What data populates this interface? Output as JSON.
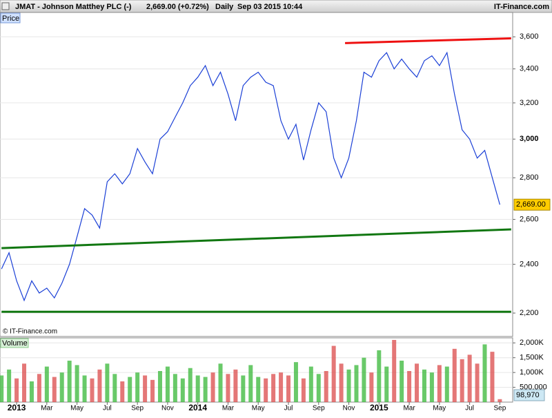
{
  "header": {
    "title": "JMAT - Johnson Matthey PLC (-)",
    "quote": "2,669.00 (+0.72%)",
    "interval": "Daily",
    "timestamp": "Sep 03 2015 10:44",
    "source": "IT-Finance.com",
    "watermark": "© IT-Finance.com"
  },
  "chart_data": [
    {
      "type": "line",
      "log_scale": true,
      "grid": true,
      "xlim": [
        -0.2,
        67.7
      ],
      "ylim": [
        2110,
        3760
      ],
      "yticks": [
        {
          "value": 2200,
          "label": "2,200"
        },
        {
          "value": 2400,
          "label": "2,400"
        },
        {
          "value": 2600,
          "label": "2,600"
        },
        {
          "value": 2800,
          "label": "2,800"
        },
        {
          "value": 3000,
          "label": "3,000"
        },
        {
          "value": 3200,
          "label": "3,200"
        },
        {
          "value": 3400,
          "label": "3,400"
        },
        {
          "value": 3600,
          "label": "3,600"
        }
      ],
      "series": [
        {
          "name": "Price",
          "color": "#1a3fd6",
          "values": [
            2380,
            2450,
            2330,
            2250,
            2330,
            2280,
            2300,
            2260,
            2320,
            2400,
            2520,
            2650,
            2620,
            2560,
            2780,
            2820,
            2770,
            2820,
            2950,
            2880,
            2820,
            3000,
            3040,
            3120,
            3200,
            3300,
            3350,
            3420,
            3300,
            3380,
            3250,
            3100,
            3300,
            3350,
            3380,
            3320,
            3300,
            3100,
            3000,
            3080,
            2890,
            3050,
            3200,
            3150,
            2900,
            2800,
            2900,
            3100,
            3380,
            3350,
            3450,
            3500,
            3400,
            3460,
            3400,
            3350,
            3450,
            3480,
            3420,
            3500,
            3250,
            3050,
            3000,
            2900,
            2940,
            2800,
            2669
          ],
          "value_labels": [
            null,
            null,
            null,
            null,
            null,
            null,
            null,
            null,
            null,
            null,
            null,
            null,
            null,
            null,
            null,
            null,
            null,
            null,
            null,
            null,
            null,
            null,
            null,
            null,
            null,
            null,
            null,
            null,
            null,
            null,
            null,
            null,
            null,
            null,
            null,
            null,
            null,
            null,
            null,
            null,
            null,
            null,
            null,
            null,
            null,
            null,
            null,
            null,
            null,
            null,
            null,
            null,
            null,
            null,
            null,
            null,
            null,
            null,
            null,
            null,
            null,
            null,
            null,
            null,
            null,
            null,
            "2,669.00"
          ]
        }
      ],
      "trendlines": [
        {
          "color": "#ee1111",
          "x": [
            45.5,
            67.5
          ],
          "values": [
            3560,
            3590
          ]
        },
        {
          "color": "#117711",
          "x": [
            0,
            67.5
          ],
          "values": [
            2470,
            2554
          ]
        },
        {
          "color": "#117711",
          "x": [
            0,
            67.5
          ],
          "values": [
            2205,
            2205
          ]
        }
      ]
    },
    {
      "type": "bar",
      "grid": true,
      "xlim": [
        -0.2,
        67.7
      ],
      "ylim": [
        0,
        2170000
      ],
      "up_color": "#44bb44",
      "down_color": "#dd5555",
      "yticks": [
        {
          "value": 500000,
          "label": "500,000"
        },
        {
          "value": 1000000,
          "label": "1,000K"
        },
        {
          "value": 1500000,
          "label": "1,500K"
        },
        {
          "value": 2000000,
          "label": "2,000K"
        }
      ],
      "categories": [
        null,
        null,
        "2013",
        null,
        null,
        null,
        "Mar",
        null,
        null,
        null,
        "May",
        null,
        null,
        null,
        "Jul",
        null,
        null,
        null,
        "Sep",
        null,
        null,
        null,
        "Nov",
        null,
        null,
        null,
        "2014",
        null,
        null,
        null,
        "Mar",
        null,
        null,
        null,
        "May",
        null,
        null,
        null,
        "Jul",
        null,
        null,
        null,
        "Sep",
        null,
        null,
        null,
        "Nov",
        null,
        null,
        null,
        "2015",
        null,
        null,
        null,
        "Mar",
        null,
        null,
        null,
        "May",
        null,
        null,
        null,
        "Jul",
        null,
        null,
        null,
        "Sep"
      ],
      "series": [
        {
          "name": "Volume",
          "values": [
            900000,
            1100000,
            800000,
            1300000,
            700000,
            950000,
            1200000,
            850000,
            1000000,
            1400000,
            1250000,
            900000,
            800000,
            1100000,
            1300000,
            950000,
            700000,
            850000,
            1000000,
            900000,
            750000,
            1050000,
            1200000,
            950000,
            800000,
            1150000,
            900000,
            850000,
            1000000,
            1300000,
            950000,
            1100000,
            900000,
            1250000,
            850000,
            800000,
            950000,
            1000000,
            900000,
            1350000,
            800000,
            1200000,
            950000,
            1050000,
            1900000,
            1300000,
            1100000,
            1250000,
            1500000,
            1000000,
            1750000,
            1200000,
            2100000,
            1400000,
            1050000,
            1300000,
            1100000,
            1000000,
            1250000,
            1200000,
            1800000,
            1450000,
            1600000,
            1300000,
            1950000,
            1700000,
            98970
          ],
          "value_labels": [
            null,
            null,
            null,
            null,
            null,
            null,
            null,
            null,
            null,
            null,
            null,
            null,
            null,
            null,
            null,
            null,
            null,
            null,
            null,
            null,
            null,
            null,
            null,
            null,
            null,
            null,
            null,
            null,
            null,
            null,
            null,
            null,
            null,
            null,
            null,
            null,
            null,
            null,
            null,
            null,
            null,
            null,
            null,
            null,
            null,
            null,
            null,
            null,
            null,
            null,
            null,
            null,
            null,
            null,
            null,
            null,
            null,
            null,
            null,
            null,
            null,
            null,
            null,
            null,
            null,
            null,
            "98,970"
          ]
        }
      ]
    }
  ]
}
